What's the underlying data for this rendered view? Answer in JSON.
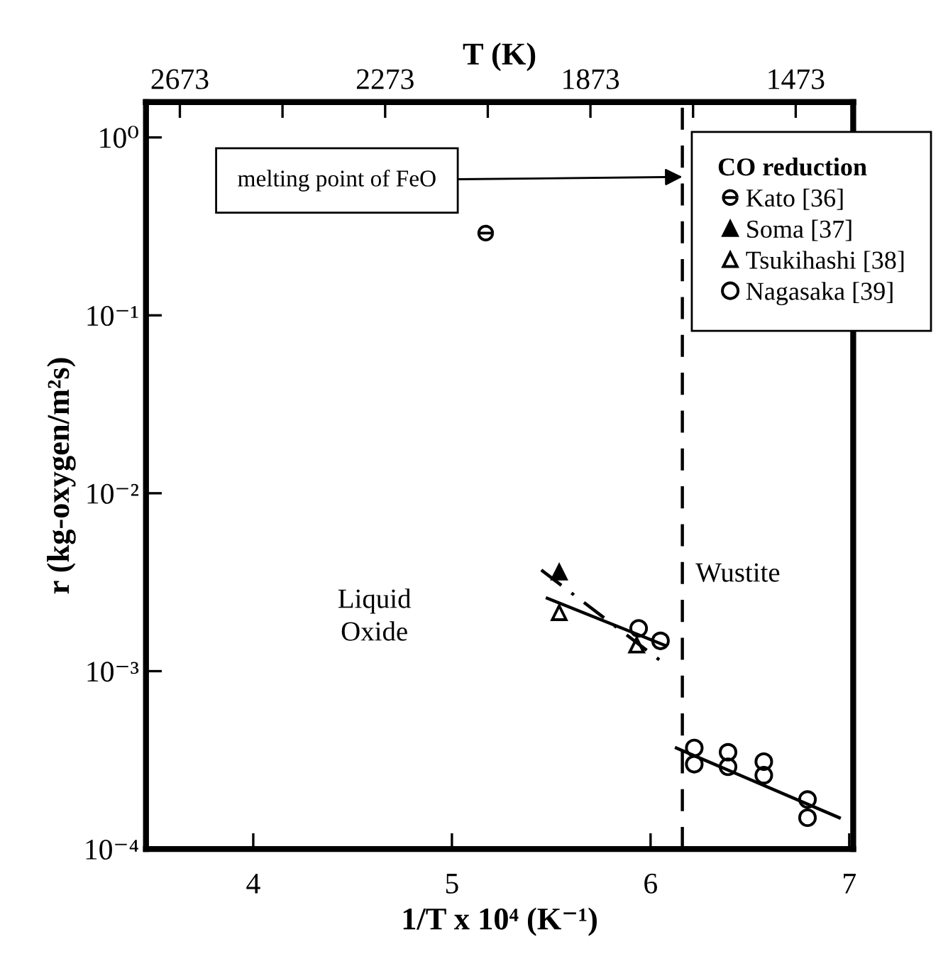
{
  "chart_data": {
    "type": "scatter",
    "xlabel": "1/T x 10⁴ (K⁻¹)",
    "ylabel": "r (kg-oxygen/m²s)",
    "x2label": "T (K)",
    "log": "y",
    "xlim": [
      3.46,
      7.02
    ],
    "ylim": [
      0.0001,
      1.58
    ],
    "xticks": [
      4,
      5,
      6,
      7
    ],
    "yticks": [
      {
        "value": 0.0001,
        "label": "10⁻⁴"
      },
      {
        "value": 0.001,
        "label": "10⁻³"
      },
      {
        "value": 0.01,
        "label": "10⁻²"
      },
      {
        "value": 0.1,
        "label": "10⁻¹"
      },
      {
        "value": 1,
        "label": "10⁰"
      }
    ],
    "x2lim": [
      2739,
      1361
    ],
    "x2ticks": [
      2673,
      {
        "value": 2473,
        "label": null
      },
      2273,
      {
        "value": 2073,
        "label": null
      },
      1873,
      {
        "value": 1673,
        "label": null
      },
      1473
    ],
    "legend": "top right",
    "legend_title": "CO reduction",
    "grid": false,
    "series": [
      {
        "name": "Kato [36]",
        "marker": "cross",
        "color": "#000000",
        "x": [
          5.17
        ],
        "values": [
          0.29
        ]
      },
      {
        "name": "Soma [37]",
        "marker": "triangle_filled",
        "color": "#000000",
        "x": [
          5.54
        ],
        "values": [
          0.0036
        ]
      },
      {
        "name": "Tsukihashi [38]",
        "marker": "triangle",
        "color": "#000000",
        "x": [
          5.54,
          5.93
        ],
        "values": [
          0.00213,
          0.0014
        ]
      },
      {
        "name": "Nagasaka [39]",
        "marker": "circle",
        "color": "#000000",
        "x": [
          5.94,
          6.05,
          6.22,
          6.22,
          6.39,
          6.39,
          6.57,
          6.57,
          6.79,
          6.79
        ],
        "values": [
          0.00174,
          0.00148,
          0.00037,
          0.0003,
          0.00035,
          0.00029,
          0.00031,
          0.00026,
          0.00019,
          0.00015
        ]
      },
      {
        "type": "line",
        "line_style": "dashdot",
        "marker": "none",
        "color": "#000000",
        "x": [
          5.45,
          6.07
        ],
        "values": [
          0.0037,
          0.0011
        ]
      },
      {
        "type": "line",
        "line_style": "solid",
        "marker": "none",
        "color": "#000000",
        "x": [
          5.48,
          6.07
        ],
        "values": [
          0.00257,
          0.0014
        ]
      },
      {
        "type": "line",
        "line_style": "solid",
        "marker": "none",
        "color": "#000000",
        "x": [
          6.13,
          6.95
        ],
        "values": [
          0.00037,
          0.00015
        ]
      }
    ],
    "ref_lines": [
      {
        "axis": "x",
        "value": 6.16,
        "line_style": "dashed",
        "color": "#000000"
      }
    ],
    "annotations": [
      {
        "text": "melting point of FeO",
        "x": 6.16,
        "y": 0.6
      },
      "Liquid\nOxide",
      "Wustite"
    ]
  }
}
